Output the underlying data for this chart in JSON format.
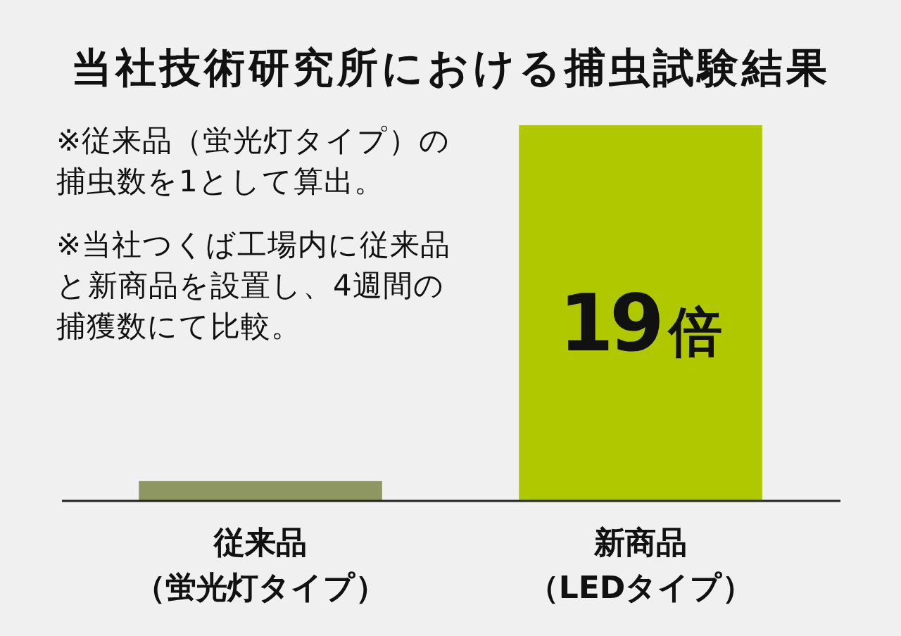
{
  "chart_data": {
    "type": "bar",
    "title": "当社技術研究所における捕虫試験結果",
    "categories": [
      "従来品（蛍光灯タイプ）",
      "新商品（LEDタイプ）"
    ],
    "values": [
      1,
      19
    ],
    "colors": [
      "#8e9761",
      "#b0c800"
    ],
    "value_labels": [
      null,
      "19倍"
    ],
    "annotations": [
      "※従来品（蛍光灯タイプ）の捕虫数を1として算出。",
      "※当社つくば工場内に従来品と新商品を設置し、4週間の捕獲数にて比較。"
    ],
    "tick_labels": "x",
    "grid": false
  }
}
